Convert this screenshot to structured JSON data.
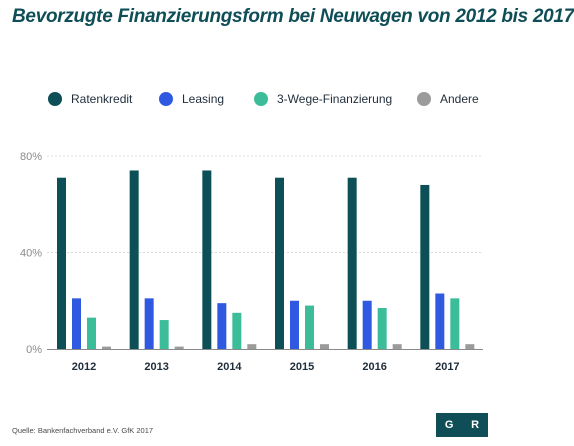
{
  "title": "Bevorzugte Finanzierungsform bei Neuwagen von 2012 bis 2017",
  "source": "Quelle: Bankenfachverband e.V.  GfK 2017",
  "logo": {
    "left": "G",
    "right": "R"
  },
  "colors": {
    "ratenkredit": "#0d4f57",
    "leasing": "#2f59e0",
    "dreiwege": "#3bbd9a",
    "andere": "#9b9b9b",
    "grid": "#dcdcdc",
    "axis": "#8a8a8a"
  },
  "chart_data": {
    "type": "bar",
    "title": "Bevorzugte Finanzierungsform bei Neuwagen von 2012 bis 2017",
    "categories": [
      "2012",
      "2013",
      "2014",
      "2015",
      "2016",
      "2017"
    ],
    "series": [
      {
        "name": "Ratenkredit",
        "values": [
          71,
          74,
          74,
          71,
          71,
          68
        ],
        "color": "#0d4f57"
      },
      {
        "name": "Leasing",
        "values": [
          21,
          21,
          19,
          20,
          20,
          23
        ],
        "color": "#2f59e0"
      },
      {
        "name": "3-Wege-Finanzierung",
        "values": [
          13,
          12,
          15,
          18,
          17,
          21
        ],
        "color": "#3bbd9a"
      },
      {
        "name": "Andere",
        "values": [
          1,
          1,
          2,
          2,
          2,
          2
        ],
        "color": "#9b9b9b"
      }
    ],
    "yticks": [
      "0%",
      "40%",
      "80%"
    ],
    "ytick_values": [
      0,
      40,
      80
    ],
    "ylim": [
      0,
      80
    ],
    "legend_position": "top",
    "grid": true
  }
}
